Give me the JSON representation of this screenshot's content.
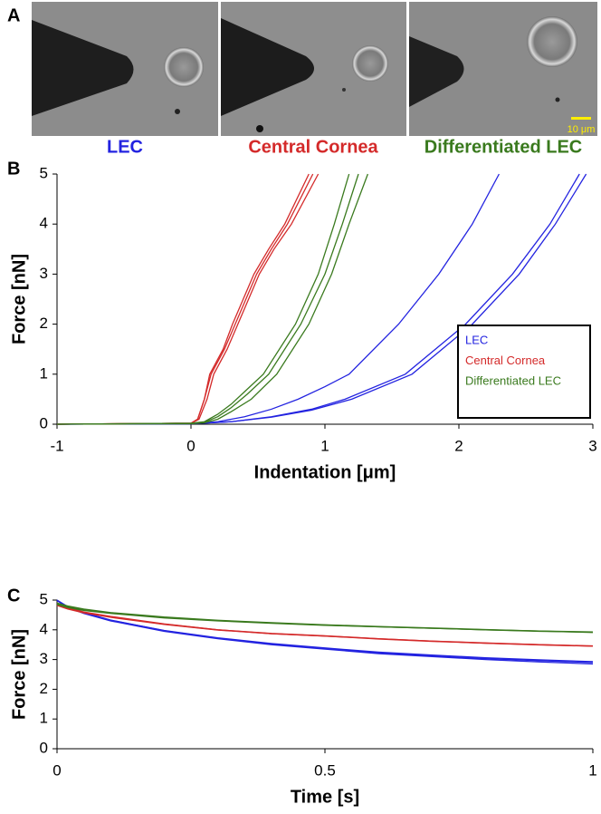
{
  "panel_a": {
    "label": "A",
    "images": [
      {
        "caption": "LEC",
        "color": "#2323e0"
      },
      {
        "caption": "Central Cornea",
        "color": "#d42a2a"
      },
      {
        "caption": "Differentiated LEC",
        "color": "#3a7a1e"
      }
    ],
    "scale_bar": "10 μm"
  },
  "chart_data": [
    {
      "type": "line",
      "panel_label": "B",
      "xlabel": "Indentation [μm]",
      "ylabel": "Force [nN]",
      "xlim": [
        -1,
        3
      ],
      "xticks": [
        -1,
        0,
        1,
        2,
        3
      ],
      "ylim": [
        0,
        5
      ],
      "yticks": [
        0,
        1,
        2,
        3,
        4,
        5
      ],
      "grid": false,
      "legend": "lower right",
      "series": [
        {
          "name": "LEC",
          "color": "#2323e0",
          "curves": [
            {
              "x": [
                -1,
                0,
                0.2,
                0.4,
                0.6,
                0.8,
                1.0,
                1.18,
                1.55,
                1.85,
                2.1,
                2.3
              ],
              "values": [
                0,
                0.01,
                0.05,
                0.15,
                0.3,
                0.5,
                0.75,
                1,
                2,
                3,
                4,
                5
              ]
            },
            {
              "x": [
                -1,
                0,
                0.3,
                0.6,
                0.9,
                1.15,
                1.6,
                2.05,
                2.4,
                2.68,
                2.9
              ],
              "values": [
                0,
                0.01,
                0.05,
                0.15,
                0.3,
                0.5,
                1,
                2,
                3,
                4,
                5
              ]
            },
            {
              "x": [
                -1,
                0,
                0.3,
                0.6,
                0.9,
                1.2,
                1.65,
                2.1,
                2.45,
                2.72,
                2.95
              ],
              "values": [
                0,
                0.01,
                0.05,
                0.14,
                0.28,
                0.5,
                1,
                2,
                3,
                4,
                5
              ]
            }
          ]
        },
        {
          "name": "Central Cornea",
          "color": "#d42a2a",
          "curves": [
            {
              "x": [
                -1,
                0,
                0.05,
                0.1,
                0.15,
                0.25,
                0.33,
                0.49,
                0.6,
                0.72,
                0.91
              ],
              "values": [
                0,
                0.02,
                0.1,
                0.5,
                1,
                1.5,
                2,
                3,
                3.5,
                4,
                5
              ]
            },
            {
              "x": [
                -1,
                0,
                0.05,
                0.1,
                0.14,
                0.24,
                0.31,
                0.47,
                0.58,
                0.7,
                0.88
              ],
              "values": [
                0,
                0.02,
                0.1,
                0.5,
                1,
                1.5,
                2,
                3,
                3.5,
                4,
                5
              ]
            },
            {
              "x": [
                -1,
                0,
                0.06,
                0.12,
                0.17,
                0.27,
                0.35,
                0.51,
                0.62,
                0.75,
                0.95
              ],
              "values": [
                0,
                0.02,
                0.1,
                0.5,
                1,
                1.5,
                2,
                3,
                3.5,
                4,
                5
              ]
            }
          ]
        },
        {
          "name": "Differentiated LEC",
          "color": "#3a7a1e",
          "curves": [
            {
              "x": [
                -1,
                0,
                0.1,
                0.2,
                0.3,
                0.4,
                0.54,
                0.78,
                0.95,
                1.07,
                1.18
              ],
              "values": [
                0,
                0.02,
                0.05,
                0.2,
                0.4,
                0.65,
                1,
                2,
                3,
                4,
                5
              ]
            },
            {
              "x": [
                -1,
                0,
                0.1,
                0.2,
                0.3,
                0.42,
                0.58,
                0.82,
                1.0,
                1.13,
                1.25
              ],
              "values": [
                0,
                0.02,
                0.04,
                0.15,
                0.33,
                0.6,
                1,
                2,
                3,
                4,
                5
              ]
            },
            {
              "x": [
                -1,
                0,
                0.1,
                0.2,
                0.3,
                0.45,
                0.64,
                0.88,
                1.05,
                1.18,
                1.32
              ],
              "values": [
                0,
                0.01,
                0.03,
                0.1,
                0.25,
                0.5,
                1,
                2,
                3,
                4,
                5
              ]
            }
          ]
        }
      ]
    },
    {
      "type": "line",
      "panel_label": "C",
      "xlabel": "Time [s]",
      "ylabel": "Force [nN]",
      "xlim": [
        0,
        1
      ],
      "xticks": [
        0,
        0.5,
        1
      ],
      "ylim": [
        0,
        5
      ],
      "yticks": [
        0,
        1,
        2,
        3,
        4,
        5
      ],
      "grid": false,
      "x": [
        0,
        0.02,
        0.05,
        0.1,
        0.2,
        0.3,
        0.4,
        0.5,
        0.6,
        0.7,
        0.8,
        0.9,
        1
      ],
      "series": [
        {
          "name": "LEC",
          "color": "#2323e0",
          "curves": [
            {
              "values": [
                5,
                4.75,
                4.55,
                4.3,
                3.95,
                3.7,
                3.5,
                3.35,
                3.2,
                3.1,
                3.0,
                2.92,
                2.85
              ]
            },
            {
              "values": [
                4.98,
                4.76,
                4.57,
                4.32,
                3.98,
                3.73,
                3.54,
                3.39,
                3.25,
                3.15,
                3.06,
                2.99,
                2.93
              ]
            },
            {
              "values": [
                5,
                4.78,
                4.58,
                4.33,
                3.97,
                3.72,
                3.52,
                3.37,
                3.22,
                3.12,
                3.03,
                2.96,
                2.9
              ]
            }
          ]
        },
        {
          "name": "Central Cornea",
          "color": "#d42a2a",
          "curves": [
            {
              "values": [
                4.9,
                4.75,
                4.6,
                4.45,
                4.2,
                4.0,
                3.88,
                3.8,
                3.7,
                3.62,
                3.55,
                3.5,
                3.45
              ]
            },
            {
              "values": [
                4.85,
                4.72,
                4.58,
                4.43,
                4.19,
                4.0,
                3.87,
                3.79,
                3.7,
                3.62,
                3.56,
                3.5,
                3.46
              ]
            },
            {
              "values": [
                4.82,
                4.7,
                4.57,
                4.42,
                4.18,
                3.99,
                3.87,
                3.79,
                3.69,
                3.61,
                3.55,
                3.49,
                3.45
              ]
            }
          ]
        },
        {
          "name": "Differentiated LEC",
          "color": "#3a7a1e",
          "curves": [
            {
              "values": [
                4.85,
                4.75,
                4.65,
                4.55,
                4.4,
                4.3,
                4.22,
                4.15,
                4.1,
                4.05,
                4.0,
                3.95,
                3.92
              ]
            },
            {
              "values": [
                4.88,
                4.78,
                4.68,
                4.57,
                4.42,
                4.31,
                4.23,
                4.16,
                4.1,
                4.05,
                4.0,
                3.96,
                3.91
              ]
            },
            {
              "values": [
                4.9,
                4.8,
                4.7,
                4.58,
                4.43,
                4.32,
                4.24,
                4.17,
                4.11,
                4.06,
                4.01,
                3.96,
                3.93
              ]
            }
          ]
        }
      ]
    }
  ]
}
